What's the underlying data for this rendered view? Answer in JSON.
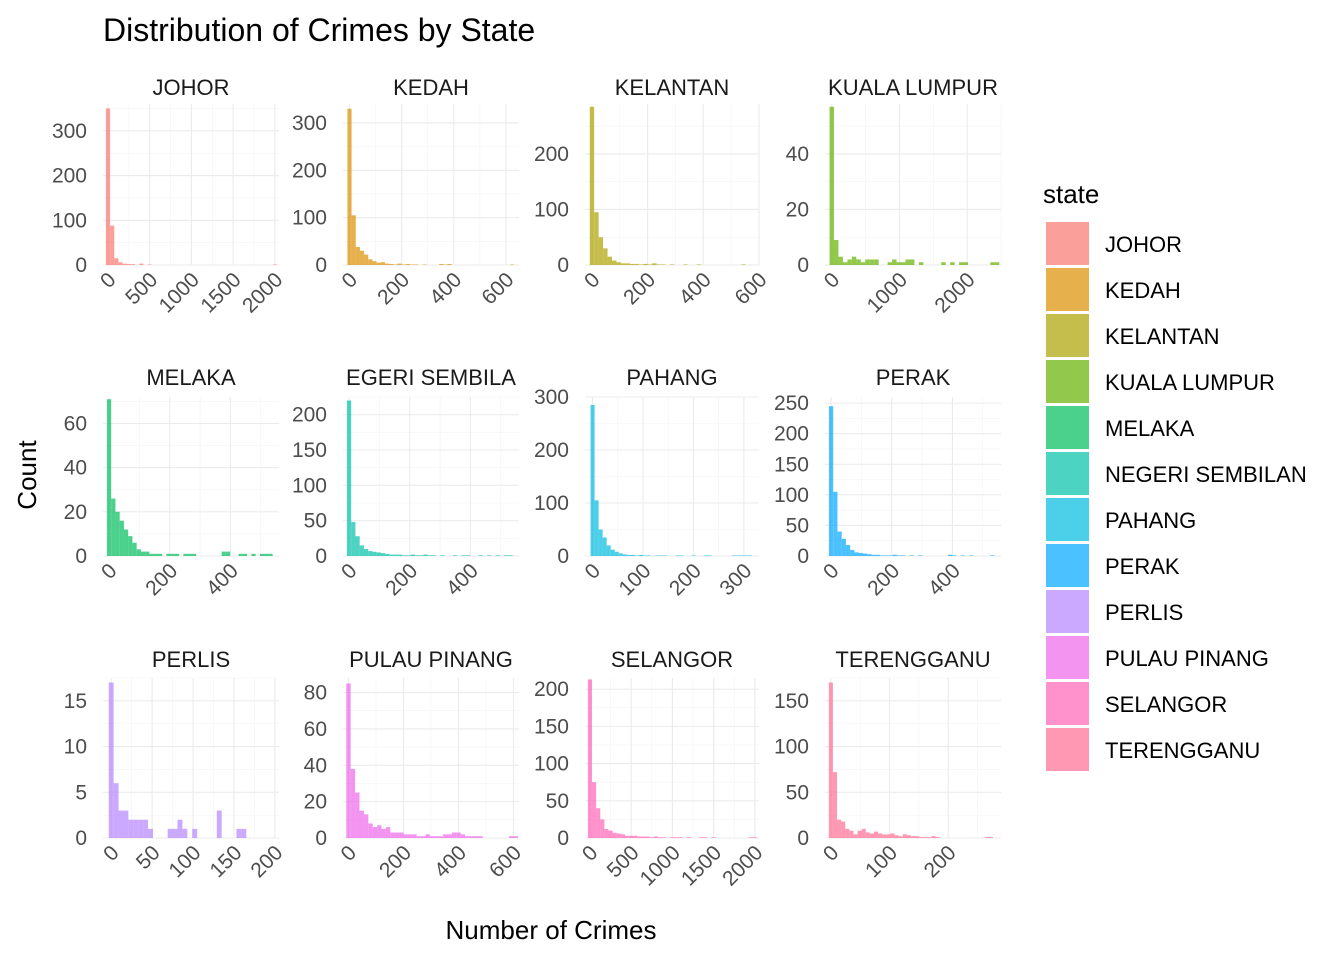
{
  "chart_data": {
    "type": "bar",
    "title": "Distribution of Crimes by State",
    "xlabel": "Number of Crimes",
    "ylabel": "Count",
    "legend_title": "state",
    "legend_position": "right",
    "grid": true,
    "facets": [
      {
        "state": "JOHOR",
        "strip": "JOHOR",
        "color": "#F8766D",
        "xlim": [
          -60,
          2050
        ],
        "ylim": [
          0,
          360
        ],
        "xticks": [
          0,
          500,
          1000,
          1500,
          2000
        ],
        "yticks": [
          0,
          100,
          200,
          300
        ],
        "bin_start": -25,
        "bin_width": 50,
        "counts": [
          350,
          88,
          15,
          6,
          3,
          2,
          2,
          0,
          3,
          0,
          1,
          0,
          0,
          0,
          0,
          0,
          0,
          0,
          0,
          0,
          0,
          0,
          0,
          0,
          0,
          0,
          0,
          0,
          0,
          0,
          0,
          0,
          0,
          0,
          0,
          0,
          0,
          0,
          0,
          0,
          1
        ]
      },
      {
        "state": "KEDAH",
        "strip": "KEDAH",
        "color": "#DB8E00",
        "xlim": [
          -25,
          650
        ],
        "ylim": [
          0,
          340
        ],
        "xticks": [
          0,
          200,
          400,
          600
        ],
        "yticks": [
          0,
          100,
          200,
          300
        ],
        "bin_start": -8,
        "bin_width": 16,
        "counts": [
          330,
          105,
          38,
          30,
          22,
          12,
          8,
          5,
          6,
          3,
          2,
          1,
          3,
          1,
          2,
          1,
          1,
          0,
          1,
          0,
          0,
          0,
          2,
          1,
          2,
          0,
          0,
          0,
          0,
          0,
          0,
          0,
          0,
          0,
          0,
          0,
          0,
          0,
          0,
          1
        ]
      },
      {
        "state": "KELANTAN",
        "strip": "KELANTAN",
        "color": "#AEA200",
        "xlim": [
          -25,
          600
        ],
        "ylim": [
          0,
          290
        ],
        "xticks": [
          0,
          200,
          400,
          600
        ],
        "yticks": [
          0,
          100,
          200
        ],
        "bin_start": -8,
        "bin_width": 16,
        "counts": [
          285,
          95,
          50,
          30,
          15,
          8,
          5,
          3,
          3,
          2,
          2,
          1,
          2,
          1,
          3,
          1,
          1,
          0,
          1,
          0,
          0,
          1,
          0,
          0,
          1,
          0,
          0,
          0,
          0,
          0,
          0,
          0,
          0,
          0,
          1
        ]
      },
      {
        "state": "KUALA LUMPUR",
        "strip": "KUALA LUMPUR",
        "color": "#64B200",
        "xlim": [
          -100,
          2500
        ],
        "ylim": [
          0,
          58
        ],
        "xticks": [
          0,
          1000,
          2000
        ],
        "yticks": [
          0,
          20,
          40
        ],
        "bin_start": -33,
        "bin_width": 66,
        "counts": [
          57,
          9,
          3,
          1,
          2,
          3,
          2,
          1,
          2,
          2,
          2,
          0,
          0,
          1,
          2,
          1,
          1,
          2,
          2,
          0,
          1,
          0,
          0,
          0,
          0,
          1,
          0,
          1,
          0,
          1,
          1,
          0,
          0,
          0,
          0,
          0,
          1,
          1
        ]
      },
      {
        "state": "MELAKA",
        "strip": "MELAKA",
        "color": "#00BD5C",
        "xlim": [
          -20,
          560
        ],
        "ylim": [
          0,
          72
        ],
        "xticks": [
          0,
          200,
          400
        ],
        "yticks": [
          0,
          20,
          40,
          60
        ],
        "bin_start": -7,
        "bin_width": 14,
        "counts": [
          71,
          26,
          20,
          16,
          12,
          9,
          6,
          3,
          2,
          2,
          1,
          1,
          1,
          0,
          1,
          1,
          1,
          0,
          1,
          1,
          1,
          0,
          0,
          0,
          0,
          0,
          0,
          2,
          2,
          0,
          0,
          1,
          1,
          0,
          1,
          0,
          1,
          1,
          1
        ]
      },
      {
        "state": "NEGERI SEMBILAN",
        "strip": "EGERI SEMBILA",
        "color": "#00C1A7",
        "xlim": [
          -20,
          560
        ],
        "ylim": [
          0,
          225
        ],
        "xticks": [
          0,
          200,
          400
        ],
        "yticks": [
          0,
          50,
          100,
          150,
          200
        ],
        "bin_start": -7,
        "bin_width": 14,
        "counts": [
          220,
          48,
          28,
          15,
          10,
          7,
          6,
          5,
          4,
          3,
          2,
          2,
          2,
          1,
          1,
          2,
          1,
          1,
          2,
          1,
          1,
          0,
          1,
          0,
          0,
          1,
          0,
          1,
          1,
          0,
          0,
          1,
          0,
          1,
          0,
          1,
          0,
          1,
          1
        ]
      },
      {
        "state": "PAHANG",
        "strip": "PAHANG",
        "color": "#00BADE",
        "xlim": [
          -15,
          330
        ],
        "ylim": [
          0,
          300
        ],
        "xticks": [
          0,
          100,
          200,
          300
        ],
        "yticks": [
          0,
          100,
          200,
          300
        ],
        "bin_start": -4,
        "bin_width": 8,
        "counts": [
          285,
          105,
          50,
          35,
          20,
          12,
          8,
          5,
          3,
          2,
          2,
          1,
          2,
          1,
          1,
          0,
          1,
          1,
          1,
          0,
          0,
          1,
          1,
          0,
          0,
          1,
          0,
          0,
          1,
          1,
          0,
          0,
          0,
          0,
          0,
          1,
          1,
          1,
          1,
          1
        ]
      },
      {
        "state": "PERAK",
        "strip": "PERAK",
        "color": "#00A6FF",
        "xlim": [
          -20,
          560
        ],
        "ylim": [
          0,
          260
        ],
        "xticks": [
          0,
          200,
          400
        ],
        "yticks": [
          0,
          50,
          100,
          150,
          200,
          250
        ],
        "bin_start": -7,
        "bin_width": 14,
        "counts": [
          245,
          105,
          40,
          28,
          18,
          10,
          6,
          5,
          4,
          3,
          2,
          2,
          1,
          1,
          1,
          2,
          1,
          1,
          0,
          1,
          0,
          1,
          0,
          0,
          0,
          0,
          0,
          0,
          2,
          1,
          0,
          1,
          0,
          1,
          0,
          0,
          0,
          0,
          1
        ]
      },
      {
        "state": "PERLIS",
        "strip": "PERLIS",
        "color": "#B385FF",
        "xlim": [
          -10,
          205
        ],
        "ylim": [
          0,
          17.5
        ],
        "xticks": [
          0,
          50,
          100,
          150,
          200
        ],
        "yticks": [
          0,
          5,
          10,
          15
        ],
        "bin_start": -3,
        "bin_width": 6,
        "counts": [
          17,
          6,
          3,
          3,
          2,
          2,
          2,
          2,
          1,
          0,
          0,
          0,
          1,
          1,
          2,
          1,
          0,
          1,
          0,
          0,
          0,
          0,
          3,
          0,
          0,
          0,
          1,
          1,
          0,
          0,
          0,
          0,
          0,
          0,
          0
        ]
      },
      {
        "state": "PULAU PINANG",
        "strip": "PULAU PINANG",
        "color": "#EF67EB",
        "xlim": [
          -20,
          620
        ],
        "ylim": [
          0,
          88
        ],
        "xticks": [
          0,
          200,
          400,
          600
        ],
        "yticks": [
          0,
          20,
          40,
          60,
          80
        ],
        "bin_start": -8,
        "bin_width": 16,
        "counts": [
          85,
          38,
          25,
          15,
          13,
          8,
          6,
          7,
          5,
          6,
          3,
          3,
          3,
          2,
          2,
          2,
          1,
          1,
          2,
          1,
          1,
          1,
          2,
          2,
          3,
          3,
          2,
          1,
          1,
          1,
          1,
          0,
          0,
          0,
          0,
          0,
          0,
          1,
          1
        ]
      },
      {
        "state": "SELANGOR",
        "strip": "SELANGOR",
        "color": "#FF63B6",
        "xlim": [
          -60,
          2050
        ],
        "ylim": [
          0,
          215
        ],
        "xticks": [
          0,
          500,
          1000,
          1500,
          2000
        ],
        "yticks": [
          0,
          50,
          100,
          150,
          200
        ],
        "bin_start": -25,
        "bin_width": 50,
        "counts": [
          213,
          75,
          40,
          25,
          12,
          10,
          7,
          6,
          5,
          3,
          3,
          3,
          2,
          2,
          2,
          1,
          2,
          1,
          1,
          0,
          1,
          1,
          1,
          0,
          1,
          0,
          0,
          1,
          1,
          0,
          1,
          0,
          0,
          0,
          0,
          0,
          0,
          0,
          0,
          1,
          1
        ]
      },
      {
        "state": "TERENGGANU",
        "strip": "TERENGGANU",
        "color": "#FF6C91",
        "xlim": [
          -10,
          290
        ],
        "ylim": [
          0,
          175
        ],
        "xticks": [
          0,
          100,
          200
        ],
        "yticks": [
          0,
          50,
          100,
          150
        ],
        "bin_start": -3.5,
        "bin_width": 7,
        "counts": [
          170,
          72,
          20,
          18,
          10,
          8,
          4,
          8,
          10,
          6,
          5,
          7,
          5,
          4,
          4,
          5,
          3,
          2,
          4,
          3,
          2,
          2,
          1,
          1,
          1,
          2,
          1,
          0,
          0,
          0,
          0,
          0,
          0,
          0,
          0,
          0,
          0,
          0,
          1,
          1
        ]
      }
    ]
  }
}
